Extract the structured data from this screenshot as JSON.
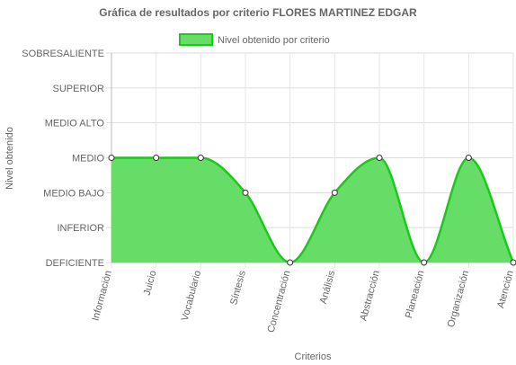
{
  "chart_data": {
    "type": "area",
    "title": "Gráfica de resultados por criterio FLORES MARTINEZ EDGAR",
    "xlabel": "Criterios",
    "ylabel": "Nivel obtenido",
    "categories": [
      "Información",
      "Juicio",
      "Vocabulario",
      "Síntesis",
      "Concentración",
      "Análisis",
      "Abstracción",
      "Planeación",
      "Organización",
      "Atención"
    ],
    "y_levels": [
      "DEFICIENTE",
      "INFERIOR",
      "MEDIO BAJO",
      "MEDIO",
      "MEDIO ALTO",
      "SUPERIOR",
      "SOBRESALIENTE"
    ],
    "ylim": [
      0,
      6
    ],
    "series": [
      {
        "name": "Nivel obtenido por criterio",
        "values": [
          3,
          3,
          3,
          2,
          0,
          2,
          3,
          0,
          3,
          0
        ],
        "color": "#1cc81c",
        "fill": "#66dd66"
      }
    ],
    "legend_position": "top",
    "grid": true
  }
}
